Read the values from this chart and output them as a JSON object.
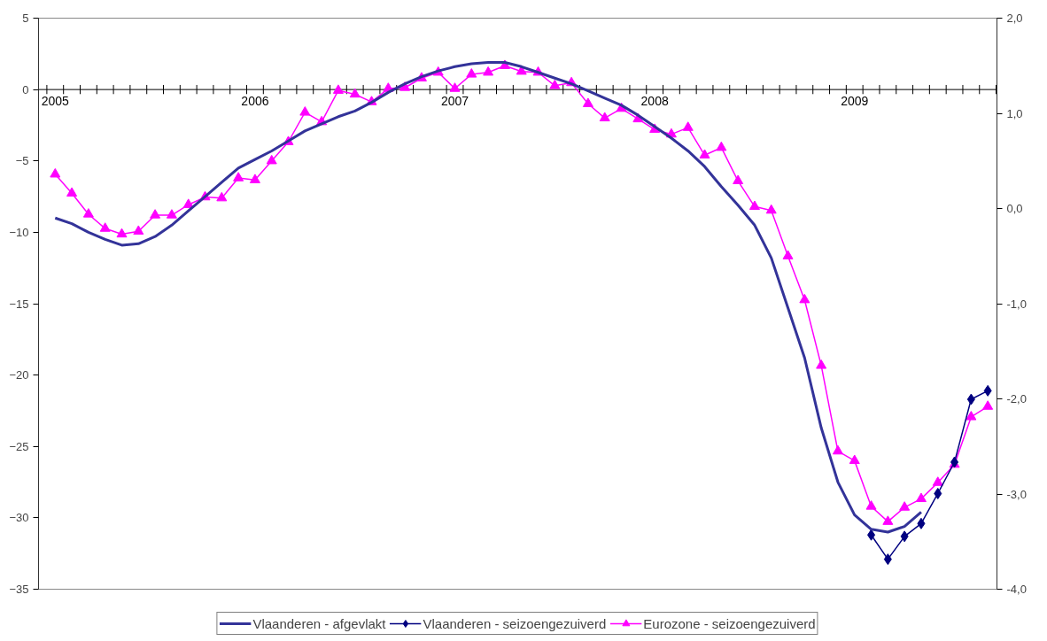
{
  "chart_data": {
    "type": "line",
    "categories": [
      "2005",
      null,
      null,
      null,
      null,
      null,
      null,
      null,
      null,
      null,
      null,
      null,
      "2006",
      null,
      null,
      null,
      null,
      null,
      null,
      null,
      null,
      null,
      null,
      null,
      "2007",
      null,
      null,
      null,
      null,
      null,
      null,
      null,
      null,
      null,
      null,
      null,
      "2008",
      null,
      null,
      null,
      null,
      null,
      null,
      null,
      null,
      null,
      null,
      null,
      "2009",
      null,
      null,
      null,
      null,
      null,
      null,
      null,
      null
    ],
    "series": [
      {
        "name": "Vlaanderen - afgevlakt",
        "color": "#333399",
        "marker": "none",
        "values": [
          -9.0,
          -9.4,
          -10.0,
          -10.5,
          -10.9,
          -10.8,
          -10.3,
          -9.5,
          -8.5,
          -7.5,
          -6.5,
          -5.5,
          -4.9,
          -4.3,
          -3.6,
          -2.9,
          -2.4,
          -1.9,
          -1.5,
          -0.9,
          -0.2,
          0.4,
          0.9,
          1.3,
          1.6,
          1.8,
          1.9,
          1.9,
          1.6,
          1.2,
          0.8,
          0.4,
          -0.1,
          -0.6,
          -1.1,
          -1.8,
          -2.6,
          -3.4,
          -4.3,
          -5.4,
          -6.8,
          -8.1,
          -9.5,
          -11.8,
          -15.3,
          -18.8,
          -23.7,
          -27.5,
          -29.8,
          -30.8,
          -31.0,
          -30.6,
          -29.6,
          null,
          null,
          null,
          null
        ]
      },
      {
        "name": "Vlaanderen - seizoengezuiverd",
        "color": "#000080",
        "marker": "diamond",
        "values": [
          null,
          null,
          null,
          null,
          null,
          null,
          null,
          null,
          null,
          null,
          null,
          null,
          null,
          null,
          null,
          null,
          null,
          null,
          null,
          null,
          null,
          null,
          null,
          null,
          null,
          null,
          null,
          null,
          null,
          null,
          null,
          null,
          null,
          null,
          null,
          null,
          null,
          null,
          null,
          null,
          null,
          null,
          null,
          null,
          null,
          null,
          null,
          null,
          null,
          -31.2,
          -32.9,
          -31.3,
          -30.4,
          -28.3,
          -26.1,
          -21.7,
          -21.1
        ]
      },
      {
        "name": "Eurozone - seizoengezuiverd",
        "color": "#ff00ff",
        "marker": "triangle",
        "axis": "y2",
        "values": [
          0.36,
          0.16,
          -0.06,
          -0.21,
          -0.27,
          -0.24,
          -0.07,
          -0.07,
          0.04,
          0.12,
          0.11,
          0.32,
          0.3,
          0.5,
          0.7,
          1.01,
          0.91,
          1.24,
          1.2,
          1.12,
          1.26,
          1.27,
          1.37,
          1.43,
          1.26,
          1.41,
          1.43,
          1.5,
          1.44,
          1.43,
          1.29,
          1.32,
          1.1,
          0.95,
          1.05,
          0.94,
          0.83,
          0.78,
          0.85,
          0.56,
          0.64,
          0.29,
          0.02,
          -0.02,
          -0.5,
          -0.96,
          -1.65,
          -2.55,
          -2.65,
          -3.13,
          -3.29,
          -3.14,
          -3.05,
          -2.88,
          -2.69,
          -2.19,
          -2.08
        ]
      }
    ],
    "ylim": [
      -35,
      5
    ],
    "yticks": [
      5,
      0,
      -5,
      -10,
      -15,
      -20,
      -25,
      -30,
      -35
    ],
    "y2lim": [
      -4.0,
      2.0
    ],
    "y2ticks": [
      {
        "value": 2.0,
        "label": "2,0"
      },
      {
        "value": 1.0,
        "label": "1,0"
      },
      {
        "value": 0.0,
        "label": "0,0"
      },
      {
        "value": -1.0,
        "label": "-1,0"
      },
      {
        "value": -2.0,
        "label": "-2,0"
      },
      {
        "value": -3.0,
        "label": "-3,0"
      },
      {
        "value": -4.0,
        "label": "-4,0"
      }
    ],
    "grid": false,
    "legend": "bottom",
    "line_style": "solid"
  }
}
